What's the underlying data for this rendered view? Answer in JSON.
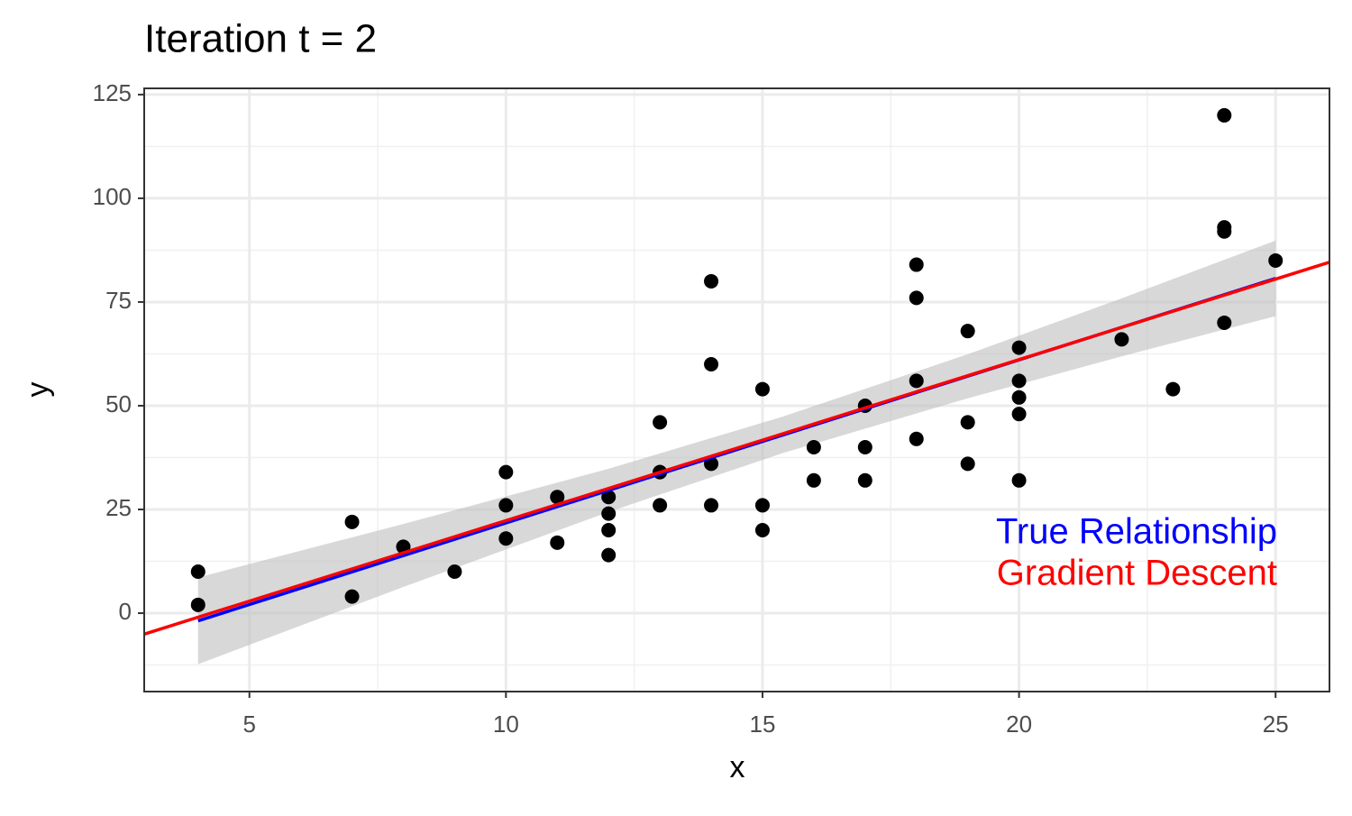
{
  "chart_data": {
    "type": "scatter",
    "title": "Iteration t = 2",
    "x_label": "x",
    "y_label": "y",
    "x": [
      4,
      4,
      7,
      7,
      8,
      9,
      10,
      10,
      10,
      11,
      11,
      12,
      12,
      12,
      12,
      13,
      13,
      13,
      13,
      14,
      14,
      14,
      14,
      15,
      15,
      15,
      16,
      16,
      17,
      17,
      17,
      18,
      18,
      18,
      18,
      19,
      19,
      19,
      20,
      20,
      20,
      20,
      20,
      22,
      23,
      24,
      24,
      24,
      24,
      25
    ],
    "values": [
      2,
      10,
      4,
      22,
      16,
      10,
      18,
      26,
      34,
      17,
      28,
      14,
      20,
      24,
      28,
      26,
      34,
      34,
      46,
      26,
      36,
      60,
      80,
      20,
      26,
      54,
      32,
      40,
      32,
      40,
      50,
      42,
      56,
      76,
      84,
      36,
      46,
      68,
      32,
      48,
      52,
      56,
      64,
      66,
      54,
      70,
      92,
      93,
      120,
      85
    ],
    "color": "#000000",
    "band": {
      "x": [
        4,
        8,
        12,
        15.4,
        19,
        22,
        25
      ],
      "lower": [
        -12.3,
        6.3,
        24.4,
        38.6,
        51.8,
        61.9,
        71.6
      ],
      "upper": [
        8.6,
        21.5,
        34.8,
        47.4,
        62.4,
        75.9,
        89.8
      ],
      "color": "#bebebe"
    },
    "lines": [
      {
        "name": "True Relationship",
        "color": "#0000ff",
        "x": [
          4,
          25
        ],
        "values": [
          -1.85,
          80.7
        ]
      },
      {
        "name": "Gradient Descent",
        "color": "#ff0000",
        "x": [
          2.95,
          26.05
        ],
        "values": [
          -5.05,
          84.6
        ]
      }
    ],
    "xlim": [
      2.95,
      26.05
    ],
    "ylim": [
      -18.9,
      126.5
    ],
    "xticks": [
      5,
      10,
      15,
      20,
      25
    ],
    "yticks": [
      0,
      25,
      50,
      75,
      100,
      125
    ],
    "minor_xticks": [
      7.5,
      12.5,
      17.5,
      22.5
    ],
    "minor_yticks": [
      -12.5,
      12.5,
      37.5,
      62.5,
      87.5,
      112.5
    ],
    "grid": true
  }
}
